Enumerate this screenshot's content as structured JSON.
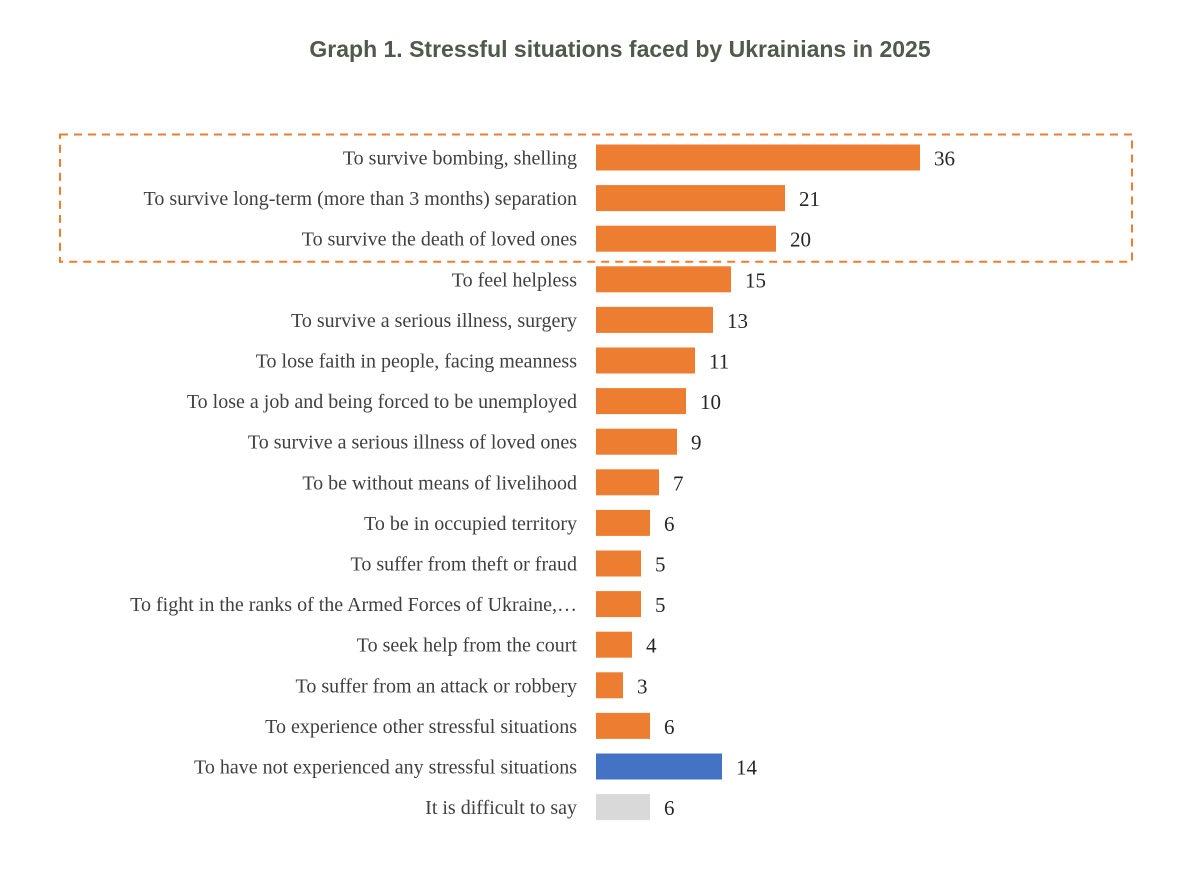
{
  "chart_data": {
    "type": "bar",
    "orientation": "horizontal",
    "title": "Graph 1. Stressful situations faced by Ukrainians in 2025",
    "xlabel": "",
    "ylabel": "",
    "xlim": [
      0,
      36
    ],
    "grid": false,
    "legend": "none",
    "categories": [
      "To survive bombing, shelling",
      "To survive long-term (more than 3 months) separation",
      "To survive the death of loved ones",
      "To feel helpless",
      "To survive a serious illness, surgery",
      "To lose faith in people, facing meanness",
      "To lose a job and being forced to be unemployed",
      "To survive a serious illness of loved ones",
      "To be without means of livelihood",
      "To be in occupied territory",
      "To suffer from theft or fraud",
      "To fight in the ranks of the Armed Forces of Ukraine,…",
      "To seek help from the court",
      "To suffer from an attack or robbery",
      "To experience other stressful situations",
      "To have not experienced any stressful situations",
      "It is difficult to say"
    ],
    "values": [
      36,
      21,
      20,
      15,
      13,
      11,
      10,
      9,
      7,
      6,
      5,
      5,
      4,
      3,
      6,
      14,
      6
    ],
    "bar_colors": [
      "#ed7d31",
      "#ed7d31",
      "#ed7d31",
      "#ed7d31",
      "#ed7d31",
      "#ed7d31",
      "#ed7d31",
      "#ed7d31",
      "#ed7d31",
      "#ed7d31",
      "#ed7d31",
      "#ed7d31",
      "#ed7d31",
      "#ed7d31",
      "#ed7d31",
      "#4472c4",
      "#d9d9d9"
    ],
    "highlight": {
      "first_rows": 3,
      "style": "dashed",
      "color": "#ed7d31"
    }
  }
}
